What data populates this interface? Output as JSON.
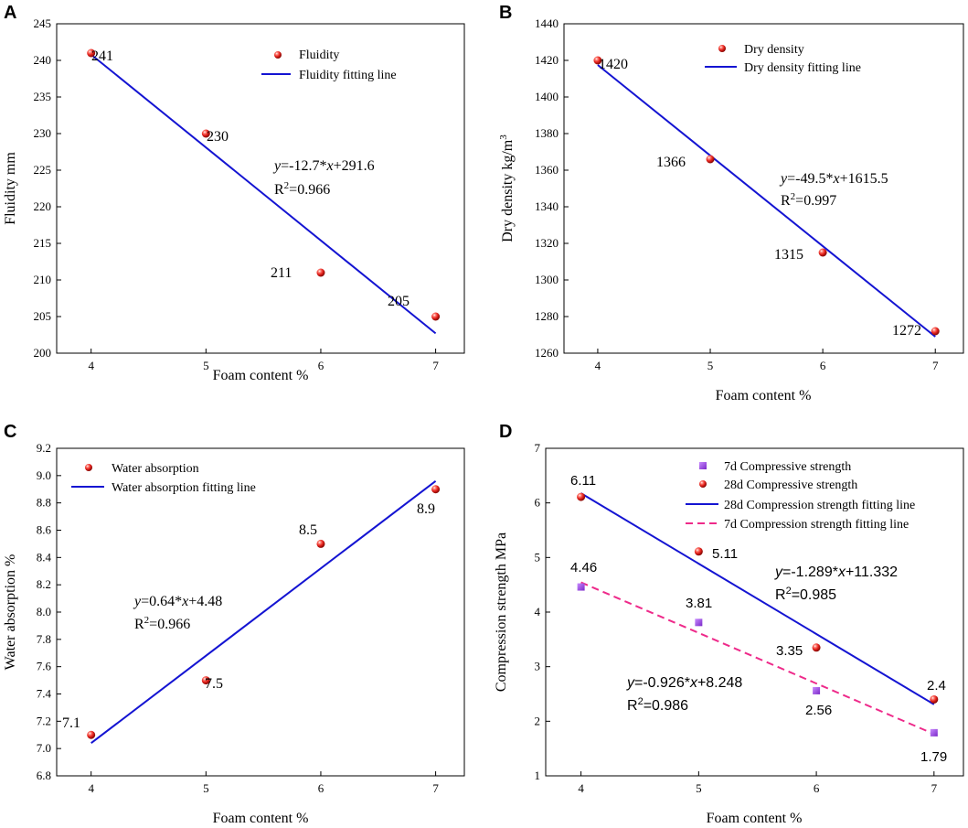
{
  "colors": {
    "fit_line": "#1414d2",
    "dash_line": "#ee2a8a",
    "point_red": "#e8241e",
    "point_purple": "#9a3ee8"
  },
  "chart_data": [
    {
      "id": "A",
      "type": "scatter",
      "panel_label": "A",
      "xlabel": "Foam content %",
      "ylabel": "Fluidity mm",
      "x_ticks": [
        "4",
        "5",
        "6",
        "7"
      ],
      "y_ticks": [
        "200",
        "205",
        "210",
        "215",
        "220",
        "225",
        "230",
        "235",
        "240",
        "245"
      ],
      "xlim": [
        3.7,
        7.25
      ],
      "ylim": [
        200,
        245
      ],
      "points": [
        {
          "x": 4,
          "y": 241
        },
        {
          "x": 5,
          "y": 230
        },
        {
          "x": 6,
          "y": 211
        },
        {
          "x": 7,
          "y": 205
        }
      ],
      "point_labels": [
        "241",
        "230",
        "211",
        "205"
      ],
      "fit": {
        "slope": -12.7,
        "intercept": 291.6,
        "x_range": [
          4,
          7
        ]
      },
      "legend": {
        "points": "Fluidity",
        "line": "Fluidity fitting line"
      },
      "equation": {
        "y": "y",
        "rhs_a": "=-12.7*",
        "x": "x",
        "rhs_b": "+291.6",
        "r2_prefix": "R",
        "r2_sup": "2",
        "r2_value": "=0.966"
      }
    },
    {
      "id": "B",
      "type": "scatter",
      "panel_label": "B",
      "xlabel": "Foam content %",
      "ylabel_main": "Dry density kg/m",
      "ylabel_sup": "3",
      "x_ticks": [
        "4",
        "5",
        "6",
        "7"
      ],
      "y_ticks": [
        "1260",
        "1280",
        "1300",
        "1320",
        "1340",
        "1360",
        "1380",
        "1400",
        "1420",
        "1440"
      ],
      "xlim": [
        3.7,
        7.25
      ],
      "ylim": [
        1260,
        1440
      ],
      "points": [
        {
          "x": 4,
          "y": 1420
        },
        {
          "x": 5,
          "y": 1366
        },
        {
          "x": 6,
          "y": 1315
        },
        {
          "x": 7,
          "y": 1272
        }
      ],
      "point_labels": [
        "1420",
        "1366",
        "1315",
        "1272"
      ],
      "fit": {
        "slope": -49.5,
        "intercept": 1615.5,
        "x_range": [
          4,
          7
        ]
      },
      "legend": {
        "points": "Dry density",
        "line": "Dry density fitting line"
      },
      "equation": {
        "y": "y",
        "rhs_a": "=-49.5*",
        "x": "x",
        "rhs_b": "+1615.5",
        "r2_prefix": "R",
        "r2_sup": "2",
        "r2_value": "=0.997"
      }
    },
    {
      "id": "C",
      "type": "scatter",
      "panel_label": "C",
      "xlabel": "Foam content %",
      "ylabel": "Water absorption %",
      "x_ticks": [
        "4",
        "5",
        "6",
        "7"
      ],
      "y_ticks": [
        "6.8",
        "7.0",
        "7.2",
        "7.4",
        "7.6",
        "7.8",
        "8.0",
        "8.2",
        "8.4",
        "8.6",
        "8.8",
        "9.0",
        "9.2"
      ],
      "xlim": [
        3.7,
        7.25
      ],
      "ylim": [
        6.8,
        9.2
      ],
      "points": [
        {
          "x": 4,
          "y": 7.1
        },
        {
          "x": 5,
          "y": 7.5
        },
        {
          "x": 6,
          "y": 8.5
        },
        {
          "x": 7,
          "y": 8.9
        }
      ],
      "point_labels": [
        "7.1",
        "7.5",
        "8.5",
        "8.9"
      ],
      "fit": {
        "slope": 0.64,
        "intercept": 4.48,
        "x_range": [
          4,
          7
        ]
      },
      "legend": {
        "points": "Water absorption",
        "line": "Water absorption fitting line"
      },
      "equation": {
        "y": "y",
        "rhs_a": "=0.64*",
        "x": "x",
        "rhs_b": "+4.48",
        "r2_prefix": "R",
        "r2_sup": "2",
        "r2_value": "=0.966"
      }
    },
    {
      "id": "D",
      "type": "scatter",
      "panel_label": "D",
      "xlabel": "Foam content %",
      "ylabel": "Compression strength MPa",
      "x_ticks": [
        "4",
        "5",
        "6",
        "7"
      ],
      "y_ticks": [
        "1",
        "2",
        "3",
        "4",
        "5",
        "6",
        "7"
      ],
      "xlim": [
        3.7,
        7.25
      ],
      "ylim": [
        1,
        7
      ],
      "series": [
        {
          "name": "7d Compressive strength",
          "marker": "square",
          "points": [
            {
              "x": 4,
              "y": 4.46
            },
            {
              "x": 5,
              "y": 3.81
            },
            {
              "x": 6,
              "y": 2.56
            },
            {
              "x": 7,
              "y": 1.79
            }
          ],
          "labels": [
            "4.46",
            "3.81",
            "2.56",
            "1.79"
          ]
        },
        {
          "name": "28d Compressive strength",
          "marker": "sphere",
          "points": [
            {
              "x": 4,
              "y": 6.11
            },
            {
              "x": 5,
              "y": 5.11
            },
            {
              "x": 6,
              "y": 3.35
            },
            {
              "x": 7,
              "y": 2.4
            }
          ],
          "labels": [
            "6.11",
            "5.11",
            "3.35",
            "2.4"
          ]
        }
      ],
      "fits": [
        {
          "name": "28d Compression strength fitting line",
          "slope": -1.289,
          "intercept": 11.332,
          "x_range": [
            4,
            7
          ],
          "style": "solid"
        },
        {
          "name": "7d Compression strength fitting line",
          "slope": -0.926,
          "intercept": 8.248,
          "x_range": [
            4,
            7
          ],
          "style": "dashed"
        }
      ],
      "equations": [
        {
          "y": "y",
          "rhs_a": "=-1.289*",
          "x": "x",
          "rhs_b": "+11.332",
          "r2_prefix": "R",
          "r2_sup": "2",
          "r2_value": "=0.985"
        },
        {
          "y": "y",
          "rhs_a": "=-0.926*",
          "x": "x",
          "rhs_b": "+8.248",
          "r2_prefix": "R",
          "r2_sup": "2",
          "r2_value": "=0.986"
        }
      ]
    }
  ]
}
